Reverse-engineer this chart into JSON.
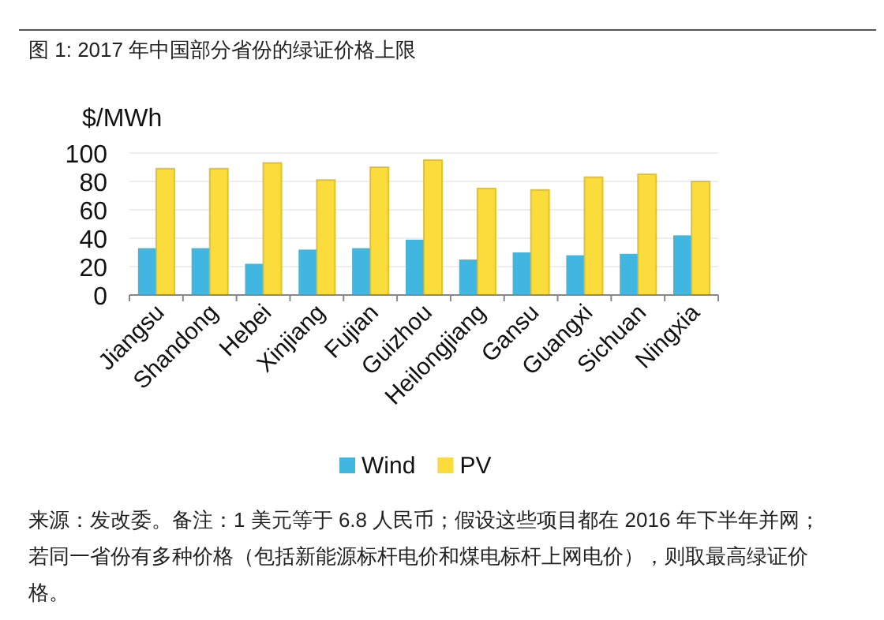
{
  "chart_data": {
    "type": "bar",
    "title": "图 1: 2017 年中国部分省份的绿证价格上限",
    "ylabel": "$/MWh",
    "categories": [
      "Jiangsu",
      "Shandong",
      "Hebei",
      "Xinjiang",
      "Fujian",
      "Guizhou",
      "Heilongjiang",
      "Gansu",
      "Guangxi",
      "Sichuan",
      "Ningxia"
    ],
    "series": [
      {
        "name": "Wind",
        "color": "#41b6e0",
        "values": [
          33,
          33,
          22,
          32,
          33,
          39,
          25,
          30,
          28,
          29,
          42
        ]
      },
      {
        "name": "PV",
        "color": "#fadc3c",
        "values": [
          89,
          89,
          93,
          81,
          90,
          95,
          75,
          74,
          83,
          85,
          80
        ]
      }
    ],
    "ylim": [
      0,
      100
    ],
    "yticks": [
      0,
      20,
      40,
      60,
      80,
      100
    ],
    "grid": "y",
    "legend": "bottom",
    "annotations": [
      "来源：发改委。备注：1 美元等于 6.8 人民币；假设这些项目都在 2016 年下半年并网；若同一省份有多种价格（包括新能源标杆电价和煤电标杆上网电价），则取最高绿证价格。"
    ]
  }
}
